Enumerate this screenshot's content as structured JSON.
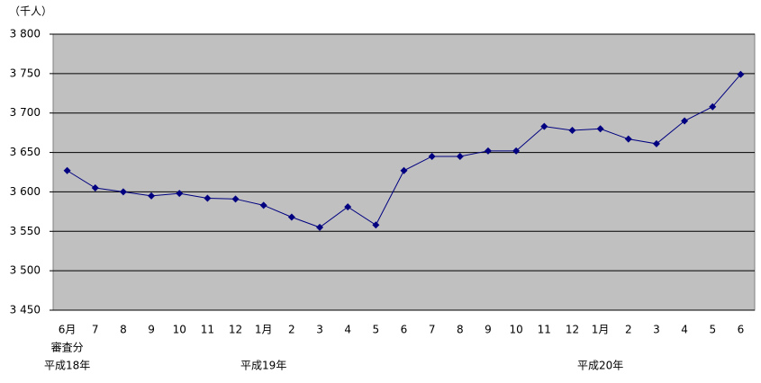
{
  "chart_data": {
    "type": "line",
    "unit_label": "（千人）",
    "categories": [
      "6月",
      "7",
      "8",
      "9",
      "10",
      "11",
      "12",
      "1月",
      "2",
      "3",
      "4",
      "5",
      "6",
      "7",
      "8",
      "9",
      "10",
      "11",
      "12",
      "1月",
      "2",
      "3",
      "4",
      "5",
      "6"
    ],
    "x_notes": [
      "審査分",
      null,
      null,
      null,
      null,
      null,
      null,
      null,
      null,
      null,
      null,
      null,
      null,
      null,
      null,
      null,
      null,
      null,
      null,
      null,
      null,
      null,
      null,
      null,
      null
    ],
    "x_years": [
      "平成18年",
      null,
      null,
      null,
      null,
      null,
      null,
      "平成19年",
      null,
      null,
      null,
      null,
      null,
      null,
      null,
      null,
      null,
      null,
      null,
      "平成20年",
      null,
      null,
      null,
      null,
      null
    ],
    "series": [
      {
        "color": "#000080",
        "values": [
          3627,
          3605,
          3600,
          3595,
          3598,
          3592,
          3591,
          3583,
          3568,
          3555,
          3581,
          3558,
          3627,
          3645,
          3645,
          3652,
          3652,
          3683,
          3678,
          3680,
          3667,
          3661,
          3690,
          3708,
          3749
        ]
      }
    ],
    "ylim": [
      3450,
      3800
    ],
    "yticks": [
      {
        "value": 3450,
        "label": "3 450"
      },
      {
        "value": 3500,
        "label": "3 500"
      },
      {
        "value": 3550,
        "label": "3 550"
      },
      {
        "value": 3600,
        "label": "3 600"
      },
      {
        "value": 3650,
        "label": "3 650"
      },
      {
        "value": 3700,
        "label": "3 700"
      },
      {
        "value": 3750,
        "label": "3 750"
      },
      {
        "value": 3800,
        "label": "3 800"
      }
    ],
    "grid": true,
    "plot_background": "#c0c0c0"
  }
}
